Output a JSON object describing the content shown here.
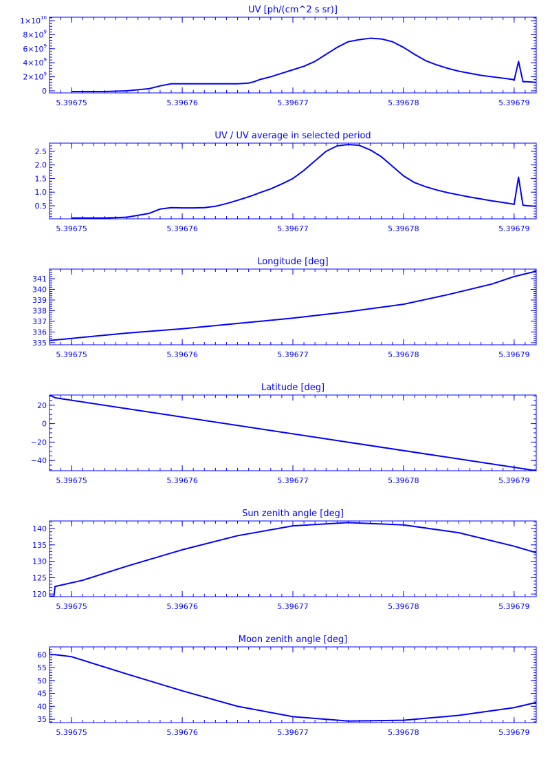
{
  "figure": {
    "line_color": "#0000ff",
    "background": "#ffffff"
  },
  "chart_data": [
    {
      "type": "line",
      "title": "UV [ph/(cm^2 s sr)]",
      "xlabel": "",
      "ylabel": "",
      "xlim": [
        5.396748,
        5.396792
      ],
      "ylim": [
        -300000000.0,
        10500000000.0
      ],
      "x_ticks": [
        5.39675,
        5.39676,
        5.39677,
        5.39678,
        5.39679
      ],
      "x_tick_labels": [
        "5.39675",
        "5.39676",
        "5.39677",
        "5.39678",
        "5.39679"
      ],
      "y_ticks": [
        0,
        2000000000.0,
        4000000000.0,
        6000000000.0,
        8000000000.0,
        10000000000.0
      ],
      "y_tick_labels": [
        {
          "base": "0",
          "sup": ""
        },
        {
          "base": "2×10",
          "sup": "9"
        },
        {
          "base": "4×10",
          "sup": "9"
        },
        {
          "base": "6×10",
          "sup": "9"
        },
        {
          "base": "8×10",
          "sup": "9"
        },
        {
          "base": "1×10",
          "sup": "10"
        }
      ],
      "y_minor": 5,
      "grid": false,
      "series": [
        {
          "x": [
            5.39675,
            5.396753,
            5.396755,
            5.396757,
            5.396758,
            5.396759,
            5.39676,
            5.396761,
            5.396762,
            5.396763,
            5.396764,
            5.396765,
            5.396766,
            5.3967665,
            5.396767,
            5.396768,
            5.396769,
            5.39677,
            5.396771,
            5.396772,
            5.396773,
            5.396774,
            5.396775,
            5.396776,
            5.396777,
            5.396778,
            5.396779,
            5.39678,
            5.396781,
            5.396782,
            5.396783,
            5.396784,
            5.396785,
            5.396786,
            5.396787,
            5.396788,
            5.396789,
            5.3967895,
            5.3967899,
            5.39679,
            5.3967904,
            5.3967908,
            5.3967912,
            5.396792
          ],
          "y": [
            -100000000.0,
            -100000000.0,
            0,
            300000000.0,
            700000000.0,
            1000000000.0,
            1000000000.0,
            1000000000.0,
            1000000000.0,
            1000000000.0,
            1000000000.0,
            1000000000.0,
            1100000000.0,
            1300000000.0,
            1600000000.0,
            2000000000.0,
            2500000000.0,
            3000000000.0,
            3500000000.0,
            4200000000.0,
            5200000000.0,
            6200000000.0,
            7000000000.0,
            7300000000.0,
            7500000000.0,
            7400000000.0,
            7000000000.0,
            6200000000.0,
            5200000000.0,
            4300000000.0,
            3700000000.0,
            3200000000.0,
            2800000000.0,
            2500000000.0,
            2200000000.0,
            2000000000.0,
            1800000000.0,
            1700000000.0,
            1600000000.0,
            1500000000.0,
            4200000000.0,
            1300000000.0,
            1300000000.0,
            1200000000.0
          ]
        }
      ]
    },
    {
      "type": "line",
      "title": "UV / UV average in selected period",
      "xlabel": "",
      "ylabel": "",
      "xlim": [
        5.396748,
        5.396792
      ],
      "ylim": [
        0.02,
        2.8
      ],
      "x_ticks": [
        5.39675,
        5.39676,
        5.39677,
        5.39678,
        5.39679
      ],
      "x_tick_labels": [
        "5.39675",
        "5.39676",
        "5.39677",
        "5.39678",
        "5.39679"
      ],
      "y_ticks": [
        0.5,
        1,
        1.5,
        2,
        2.5
      ],
      "y_tick_labels": [
        {
          "base": "0.5",
          "sup": ""
        },
        {
          "base": "1.0",
          "sup": ""
        },
        {
          "base": "1.5",
          "sup": ""
        },
        {
          "base": "2.0",
          "sup": ""
        },
        {
          "base": "2.5",
          "sup": ""
        }
      ],
      "y_minor": 5,
      "grid": false,
      "series": [
        {
          "x": [
            5.39675,
            5.396753,
            5.396755,
            5.396757,
            5.396758,
            5.396759,
            5.39676,
            5.396761,
            5.396762,
            5.396763,
            5.396764,
            5.396765,
            5.396766,
            5.3967665,
            5.396767,
            5.396768,
            5.396769,
            5.39677,
            5.396771,
            5.396772,
            5.396773,
            5.396774,
            5.396775,
            5.396776,
            5.396777,
            5.396778,
            5.396779,
            5.39678,
            5.396781,
            5.396782,
            5.396783,
            5.396784,
            5.396785,
            5.396786,
            5.396787,
            5.396788,
            5.396789,
            5.3967895,
            5.3967899,
            5.39679,
            5.3967904,
            5.3967908,
            5.3967912,
            5.396792
          ],
          "y": [
            0.05,
            0.05,
            0.08,
            0.22,
            0.38,
            0.43,
            0.42,
            0.42,
            0.43,
            0.48,
            0.58,
            0.7,
            0.83,
            0.9,
            0.98,
            1.12,
            1.3,
            1.5,
            1.8,
            2.15,
            2.5,
            2.7,
            2.75,
            2.72,
            2.55,
            2.3,
            1.95,
            1.6,
            1.35,
            1.2,
            1.08,
            0.98,
            0.9,
            0.82,
            0.75,
            0.68,
            0.62,
            0.59,
            0.56,
            0.55,
            1.55,
            0.52,
            0.5,
            0.48
          ]
        }
      ]
    },
    {
      "type": "line",
      "title": "Longitude [deg]",
      "xlabel": "",
      "ylabel": "",
      "xlim": [
        5.396748,
        5.396792
      ],
      "ylim": [
        334.8,
        341.9
      ],
      "x_ticks": [
        5.39675,
        5.39676,
        5.39677,
        5.39678,
        5.39679
      ],
      "x_tick_labels": [
        "5.39675",
        "5.39676",
        "5.39677",
        "5.39678",
        "5.39679"
      ],
      "y_ticks": [
        335,
        336,
        337,
        338,
        339,
        340,
        341
      ],
      "y_tick_labels": [
        {
          "base": "335",
          "sup": ""
        },
        {
          "base": "336",
          "sup": ""
        },
        {
          "base": "337",
          "sup": ""
        },
        {
          "base": "338",
          "sup": ""
        },
        {
          "base": "339",
          "sup": ""
        },
        {
          "base": "340",
          "sup": ""
        },
        {
          "base": "341",
          "sup": ""
        }
      ],
      "y_minor": 5,
      "grid": false,
      "series": [
        {
          "x": [
            5.396748,
            5.39675,
            5.396755,
            5.39676,
            5.396765,
            5.39677,
            5.396775,
            5.39678,
            5.396784,
            5.396788,
            5.39679,
            5.396792
          ],
          "y": [
            335.2,
            335.4,
            335.9,
            336.3,
            336.8,
            337.3,
            337.9,
            338.6,
            339.5,
            340.5,
            341.2,
            341.7
          ]
        }
      ]
    },
    {
      "type": "line",
      "title": "Latitude [deg]",
      "xlabel": "",
      "ylabel": "",
      "xlim": [
        5.396748,
        5.396792
      ],
      "ylim": [
        -51,
        31
      ],
      "x_ticks": [
        5.39675,
        5.39676,
        5.39677,
        5.39678,
        5.39679
      ],
      "x_tick_labels": [
        "5.39675",
        "5.39676",
        "5.39677",
        "5.39678",
        "5.39679"
      ],
      "y_ticks": [
        -40,
        -20,
        0,
        20
      ],
      "y_tick_labels": [
        {
          "base": "−40",
          "sup": ""
        },
        {
          "base": "−20",
          "sup": ""
        },
        {
          "base": "0",
          "sup": ""
        },
        {
          "base": "20",
          "sup": ""
        }
      ],
      "y_minor": 4,
      "grid": false,
      "series": [
        {
          "x": [
            5.396748,
            5.3967482,
            5.3967485,
            5.396792
          ],
          "y": [
            30,
            30,
            28,
            -51
          ]
        }
      ]
    },
    {
      "type": "line",
      "title": "Sun zenith angle [deg]",
      "xlabel": "",
      "ylabel": "",
      "xlim": [
        5.396748,
        5.396792
      ],
      "ylim": [
        119.2,
        142.3
      ],
      "x_ticks": [
        5.39675,
        5.39676,
        5.39677,
        5.39678,
        5.39679
      ],
      "x_tick_labels": [
        "5.39675",
        "5.39676",
        "5.39677",
        "5.39678",
        "5.39679"
      ],
      "y_ticks": [
        120,
        125,
        130,
        135,
        140
      ],
      "y_tick_labels": [
        {
          "base": "120",
          "sup": ""
        },
        {
          "base": "125",
          "sup": ""
        },
        {
          "base": "130",
          "sup": ""
        },
        {
          "base": "135",
          "sup": ""
        },
        {
          "base": "140",
          "sup": ""
        }
      ],
      "y_minor": 5,
      "grid": false,
      "series": [
        {
          "x": [
            5.396748,
            5.3967484,
            5.3967485,
            5.396751,
            5.396755,
            5.39676,
            5.396765,
            5.39677,
            5.396775,
            5.39678,
            5.396785,
            5.39679,
            5.396792
          ],
          "y": [
            119.3,
            119.3,
            122.3,
            124.2,
            128.5,
            133.5,
            137.8,
            140.8,
            141.8,
            141.1,
            138.7,
            134.6,
            132.6
          ]
        }
      ]
    },
    {
      "type": "line",
      "title": "Moon zenith angle [deg]",
      "xlabel": "",
      "ylabel": "",
      "xlim": [
        5.396748,
        5.396792
      ],
      "ylim": [
        33.7,
        63
      ],
      "x_ticks": [
        5.39675,
        5.39676,
        5.39677,
        5.39678,
        5.39679
      ],
      "x_tick_labels": [
        "5.39675",
        "5.39676",
        "5.39677",
        "5.39678",
        "5.39679"
      ],
      "y_ticks": [
        35,
        40,
        45,
        50,
        55,
        60
      ],
      "y_tick_labels": [
        {
          "base": "35",
          "sup": ""
        },
        {
          "base": "40",
          "sup": ""
        },
        {
          "base": "45",
          "sup": ""
        },
        {
          "base": "50",
          "sup": ""
        },
        {
          "base": "55",
          "sup": ""
        },
        {
          "base": "60",
          "sup": ""
        }
      ],
      "y_minor": 5,
      "grid": false,
      "series": [
        {
          "x": [
            5.396748,
            5.396748,
            5.3967485,
            5.39675,
            5.396755,
            5.39676,
            5.396765,
            5.39677,
            5.396775,
            5.39678,
            5.396785,
            5.39679,
            5.396792
          ],
          "y": [
            62.5,
            60,
            60,
            59.2,
            52.5,
            46,
            40,
            36,
            34.3,
            34.6,
            36.5,
            39.5,
            41.5
          ]
        }
      ]
    }
  ]
}
